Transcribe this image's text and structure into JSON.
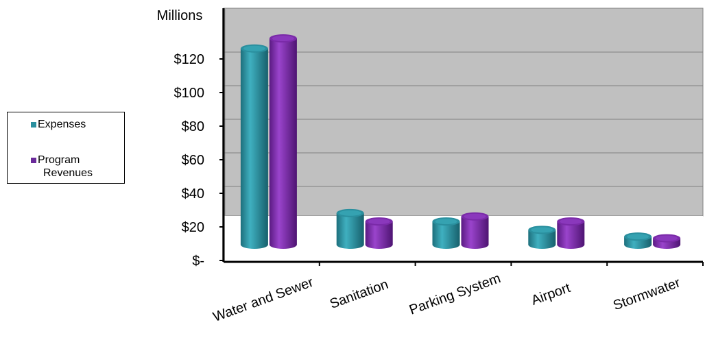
{
  "chart_data": {
    "type": "bar",
    "title": "",
    "ylabel": "Millions",
    "xlabel": "",
    "categories": [
      "Water and Sewer",
      "Sanitation",
      "Parking System",
      "Airport",
      "Stormwater"
    ],
    "series": [
      {
        "name": "Expenses",
        "values": [
          125,
          27,
          22,
          17,
          13
        ],
        "color": "#2a8f9e"
      },
      {
        "name": "Program Revenues",
        "values": [
          131,
          22,
          25,
          22,
          12
        ],
        "color": "#7a2aa8"
      }
    ],
    "ylim": [
      0,
      140
    ],
    "yticks": [
      0,
      20,
      40,
      60,
      80,
      100,
      120
    ],
    "ytick_labels": [
      "$-",
      "$20",
      "$40",
      "$60",
      "$80",
      "$100",
      "$120"
    ],
    "grid": true,
    "legend_position": "left",
    "style": "3d-cylinder"
  },
  "legend": {
    "expenses_label": "Expenses",
    "program_revenues_label_line1": "Program",
    "program_revenues_label_line2": "Revenues"
  }
}
